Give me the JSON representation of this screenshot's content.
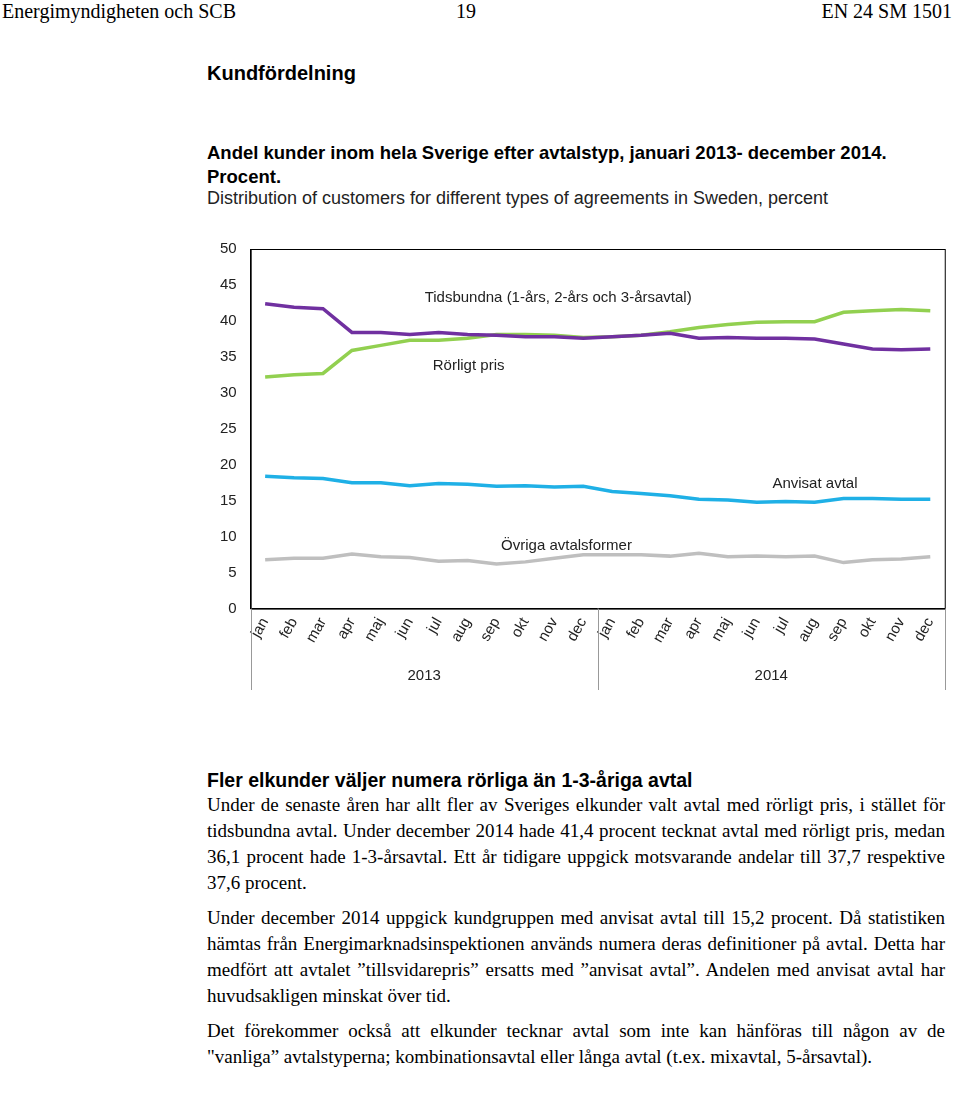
{
  "header": {
    "left": "Energimyndigheten och SCB",
    "page": "19",
    "right": "EN 24 SM 1501"
  },
  "section_title": "Kundfördelning",
  "chart_data": {
    "type": "line",
    "title": "Andel kunder inom hela Sverige efter avtalstyp, januari 2013- december 2014. Procent.",
    "subtitle": "Distribution of customers for different types of agreements in Sweden, percent",
    "categories": [
      "jan",
      "feb",
      "mar",
      "apr",
      "maj",
      "jun",
      "jul",
      "aug",
      "sep",
      "okt",
      "nov",
      "dec",
      "jan",
      "feb",
      "mar",
      "apr",
      "maj",
      "jun",
      "jul",
      "aug",
      "sep",
      "okt",
      "nov",
      "dec"
    ],
    "year_labels": [
      "2013",
      "2014"
    ],
    "series": [
      {
        "name": "Tidsbundna (1-års, 2-års och 3-årsavtal)",
        "color": "#7030a0",
        "values": [
          42.4,
          41.9,
          41.7,
          38.4,
          38.4,
          38.1,
          38.4,
          38.1,
          38.0,
          37.8,
          37.8,
          37.6,
          37.8,
          38.0,
          38.3,
          37.6,
          37.7,
          37.6,
          37.6,
          37.5,
          36.8,
          36.1,
          36.0,
          36.1
        ]
      },
      {
        "name": "Rörligt pris",
        "color": "#92d050",
        "values": [
          32.2,
          32.5,
          32.7,
          35.9,
          36.6,
          37.3,
          37.3,
          37.6,
          38.1,
          38.1,
          38.0,
          37.7,
          37.8,
          38.0,
          38.5,
          39.1,
          39.5,
          39.8,
          39.9,
          39.9,
          41.2,
          41.4,
          41.6,
          41.4
        ]
      },
      {
        "name": "Anvisat avtal",
        "color": "#1fb0e6",
        "values": [
          18.4,
          18.2,
          18.1,
          17.5,
          17.5,
          17.1,
          17.4,
          17.3,
          17.0,
          17.1,
          16.9,
          17.0,
          16.3,
          16.0,
          15.7,
          15.2,
          15.1,
          14.8,
          14.9,
          14.8,
          15.3,
          15.3,
          15.2,
          15.2
        ]
      },
      {
        "name": "Övriga avtalsformer",
        "color": "#bfbfbf",
        "values": [
          6.8,
          7.0,
          7.0,
          7.6,
          7.2,
          7.1,
          6.6,
          6.7,
          6.2,
          6.5,
          7.0,
          7.5,
          7.5,
          7.5,
          7.3,
          7.7,
          7.2,
          7.3,
          7.2,
          7.3,
          6.4,
          6.8,
          6.9,
          7.2
        ]
      }
    ],
    "ylim": [
      0,
      50
    ],
    "yticks": [
      0,
      5,
      10,
      15,
      20,
      25,
      30,
      35,
      40,
      45,
      50
    ],
    "grid": false
  },
  "article": {
    "heading": "Fler elkunder väljer numera rörliga än 1-3-åriga avtal",
    "paragraphs": [
      "Under de senaste åren har allt fler av Sveriges elkunder valt avtal med rörligt pris, i stället för tidsbundna avtal. Under december 2014 hade 41,4 procent tecknat avtal med rörligt pris, medan 36,1 procent hade 1-3-årsavtal. Ett år tidigare uppgick motsvarande andelar till 37,7 respektive 37,6 procent.",
      "Under december 2014 uppgick kundgruppen med anvisat avtal till 15,2 procent. Då statistiken hämtas från Energimarknadsinspektionen används numera deras definitioner på avtal. Detta har medfört att avtalet ”tillsvidarepris” ersatts med ”anvisat avtal”. Andelen med anvisat avtal har huvudsakligen minskat över tid.",
      "Det förekommer också att elkunder tecknar avtal som inte kan hänföras till någon av de \"vanliga” avtalstyperna; kombinationsavtal eller långa avtal (t.ex. mixavtal, 5-årsavtal)."
    ]
  }
}
